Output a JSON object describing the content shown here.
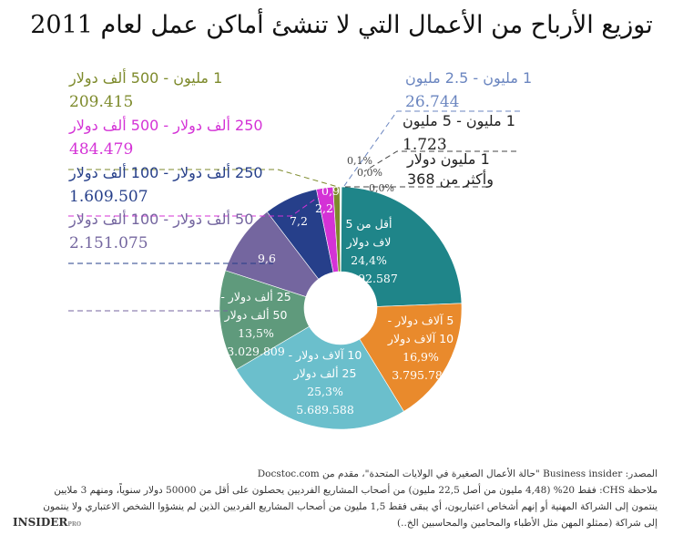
{
  "chart_data": {
    "type": "pie",
    "donut": true,
    "title": "توزيع الأرباح من الأعمال التي لا تنشئ أماكن عمل لعام 2011",
    "slices": [
      {
        "label": "أقل من 5 لاف دولار",
        "line1": "أقل من 5",
        "line2": "لاف دولار",
        "percent": 24.4,
        "percent_label": "24,4%",
        "count": "5.492.587",
        "color": "#1f8589"
      },
      {
        "label": "5 آلاف دولار - 10 آلاف دولار",
        "line1": "5 آلاف دولار -",
        "line2": "10 آلاف دولار",
        "percent": 16.9,
        "percent_label": "16,9%",
        "count": "3.795.785",
        "color": "#e98a2c"
      },
      {
        "label": "10 آلاف دولار - 25 ألف دولار",
        "line1": "10 آلاف دولار -",
        "line2": "25 ألف دولار",
        "percent": 25.3,
        "percent_label": "25,3%",
        "count": "5.689.588",
        "color": "#6bbfcc"
      },
      {
        "label": "25 ألف دولار - 50 ألف دولار",
        "line1": "25 ألف دولار -",
        "line2": "50 ألف دولار",
        "percent": 13.5,
        "percent_label": "13,5%",
        "count": "3.029.809",
        "color": "#5f9a7c"
      },
      {
        "label": "50 ألف دولار - 100 ألف دولار",
        "percent": 9.6,
        "percent_label": "9,6",
        "count": "2.151.075",
        "color": "#74669f"
      },
      {
        "label": "250 ألف دولار - 100 ألف دولار",
        "percent": 7.2,
        "percent_label": "7,2",
        "count": "1.609.507",
        "color": "#263f8a"
      },
      {
        "label": "250 ألف دولار - 500 ألف دولار",
        "percent": 2.2,
        "percent_label": "2,2",
        "count": "484.479",
        "color": "#d432d6"
      },
      {
        "label": "1 مليون - 500 ألف دولار",
        "percent": 0.9,
        "percent_label": "0,9",
        "count": "209.415",
        "color": "#7d8a2b"
      },
      {
        "label": "1 مليون - 2.5 مليون",
        "percent": 0.1,
        "percent_label": "0,1%",
        "count": "26.744",
        "color": "#6b86c0"
      },
      {
        "label": "1 مليون - 5 مليون",
        "percent": 0.0,
        "percent_label": "0,0%",
        "count": "1.723",
        "color": "#444444"
      },
      {
        "label": "1 مليون دولار وأكثر من",
        "line1": "1 مليون دولار",
        "line2": "وأكثر من 368",
        "percent": 0.0,
        "percent_label": "0,0%",
        "count": "368",
        "color": "#444444"
      }
    ]
  },
  "footer": {
    "source": "المصدر: Business insider \"حالة الأعمال الصغيرة في الولايات المتحدة\"، مقدم من Docstoc.com",
    "note1": "ملاحظة CHS: فقط 20% (4,48 مليون من أصل 22,5 مليون) من أصحاب المشاريع الفرديين يحصلون على أقل من 50000 دولار سنوياً، ومنهم 3 ملايين",
    "note2": "ينتمون إلى الشراكة المهنية أو إنهم أشخاص اعتباريون، أي يبقى فقط 1,5 مليون من أصحاب المشاريع الفرديين الذين لم ينشؤوا الشخص الاعتباري ولا ينتمون",
    "note3": "إلى شراكة (ممثلو المهن مثل الأطباء والمحامين والمحاسبين الخ..)",
    "logo": "INSIDER",
    "logo_sup": "PRO"
  }
}
